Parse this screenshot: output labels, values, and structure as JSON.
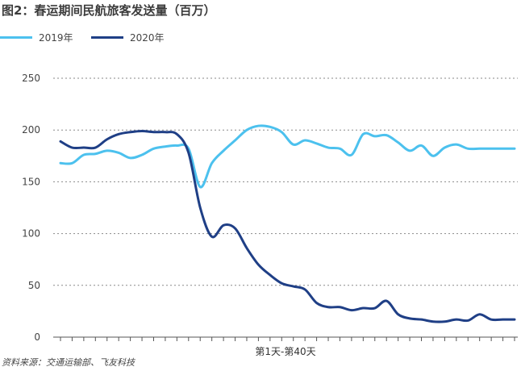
{
  "title": "图2：春运期间民航旅客发送量（百万）",
  "source": "资料来源：交通运输部、飞友科技",
  "colors": {
    "series_2019": "#4cc1ee",
    "series_2020": "#1f3f86",
    "grid": "#8a8a8a",
    "axis": "#555555"
  },
  "chart_data": {
    "type": "line",
    "title": "图2：春运期间民航旅客发送量（百万）",
    "xlabel": "第1天-第40天",
    "ylabel": "",
    "ylim": [
      0,
      250
    ],
    "yticks": [
      "0",
      "50",
      "100",
      "150",
      "200",
      "250"
    ],
    "x": [
      1,
      2,
      3,
      4,
      5,
      6,
      7,
      8,
      9,
      10,
      11,
      12,
      13,
      14,
      15,
      16,
      17,
      18,
      19,
      20,
      21,
      22,
      23,
      24,
      25,
      26,
      27,
      28,
      29,
      30,
      31,
      32,
      33,
      34,
      35,
      36,
      37,
      38,
      39,
      40
    ],
    "grid": true,
    "legend": "top-left",
    "series": [
      {
        "name": "2019年",
        "values": [
          168,
          168,
          176,
          177,
          180,
          178,
          173,
          176,
          182,
          184,
          185,
          182,
          145,
          168,
          180,
          190,
          200,
          204,
          203,
          198,
          186,
          190,
          187,
          183,
          182,
          176,
          196,
          194,
          195,
          188,
          180,
          185,
          175,
          183,
          186,
          182,
          182,
          182,
          182,
          182
        ]
      },
      {
        "name": "2020年",
        "values": [
          189,
          183,
          183,
          183,
          191,
          196,
          198,
          199,
          198,
          198,
          196,
          178,
          125,
          97,
          108,
          105,
          86,
          70,
          60,
          52,
          49,
          46,
          33,
          29,
          29,
          26,
          28,
          28,
          35,
          22,
          18,
          17,
          15,
          15,
          17,
          16,
          22,
          17,
          17,
          17
        ]
      }
    ]
  }
}
